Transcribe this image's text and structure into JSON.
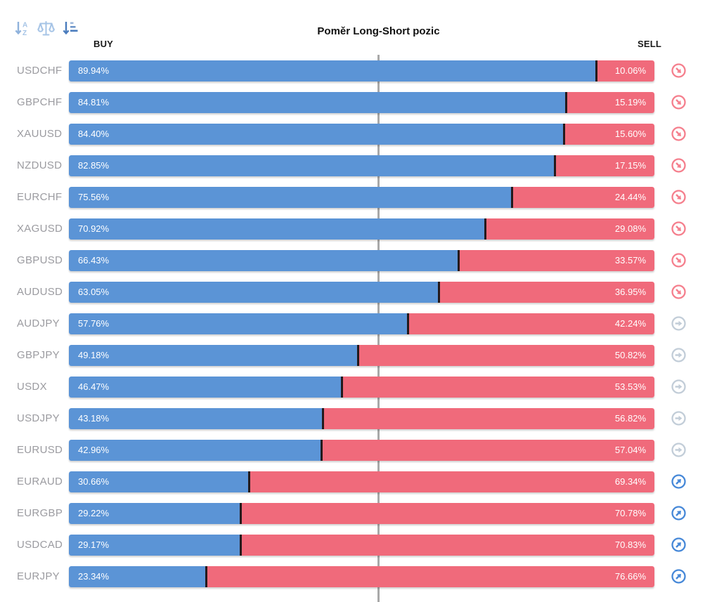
{
  "title": "Poměr Long-Short pozic",
  "toolbar": {
    "sort_alpha_icon": "sort-alphabetical",
    "sort_balance_icon": "balance-scale",
    "sort_value_icon": "sort-by-value"
  },
  "columns": {
    "buy": "BUY",
    "sell": "SELL"
  },
  "colors": {
    "buy_bar": "#5b94d6",
    "sell_bar": "#f06a7b",
    "segment_divider": "#241a1c",
    "center_gridline": "#a9a9a9",
    "pair_label": "#9b9ba0",
    "signal_down": "#f57f8d",
    "signal_neutral": "#c2cdd8",
    "signal_up": "#4688d8"
  },
  "chart_data": {
    "type": "bar",
    "orientation": "horizontal",
    "stacked": true,
    "title": "Poměr Long-Short pozic",
    "value_format": "percent_two_decimals",
    "xlim": [
      0,
      100
    ],
    "center_reference_line": 50,
    "legend_position": "column-headers",
    "categories": [
      "USDCHF",
      "GBPCHF",
      "XAUUSD",
      "NZDUSD",
      "EURCHF",
      "XAGUSD",
      "GBPUSD",
      "AUDUSD",
      "AUDJPY",
      "GBPJPY",
      "USDX",
      "USDJPY",
      "EURUSD",
      "EURAUD",
      "EURGBP",
      "USDCAD",
      "EURJPY"
    ],
    "series": [
      {
        "name": "BUY",
        "values": [
          89.94,
          84.81,
          84.4,
          82.85,
          75.56,
          70.92,
          66.43,
          63.05,
          57.76,
          49.18,
          46.47,
          43.18,
          42.96,
          30.66,
          29.22,
          29.17,
          23.34
        ]
      },
      {
        "name": "SELL",
        "values": [
          10.06,
          15.19,
          15.6,
          17.15,
          24.44,
          29.08,
          33.57,
          36.95,
          42.24,
          50.82,
          53.53,
          56.82,
          57.04,
          69.34,
          70.78,
          70.83,
          76.66
        ]
      }
    ],
    "signals": [
      "down",
      "down",
      "down",
      "down",
      "down",
      "down",
      "down",
      "down",
      "neutral",
      "neutral",
      "neutral",
      "neutral",
      "neutral",
      "up",
      "up",
      "up",
      "up"
    ]
  }
}
